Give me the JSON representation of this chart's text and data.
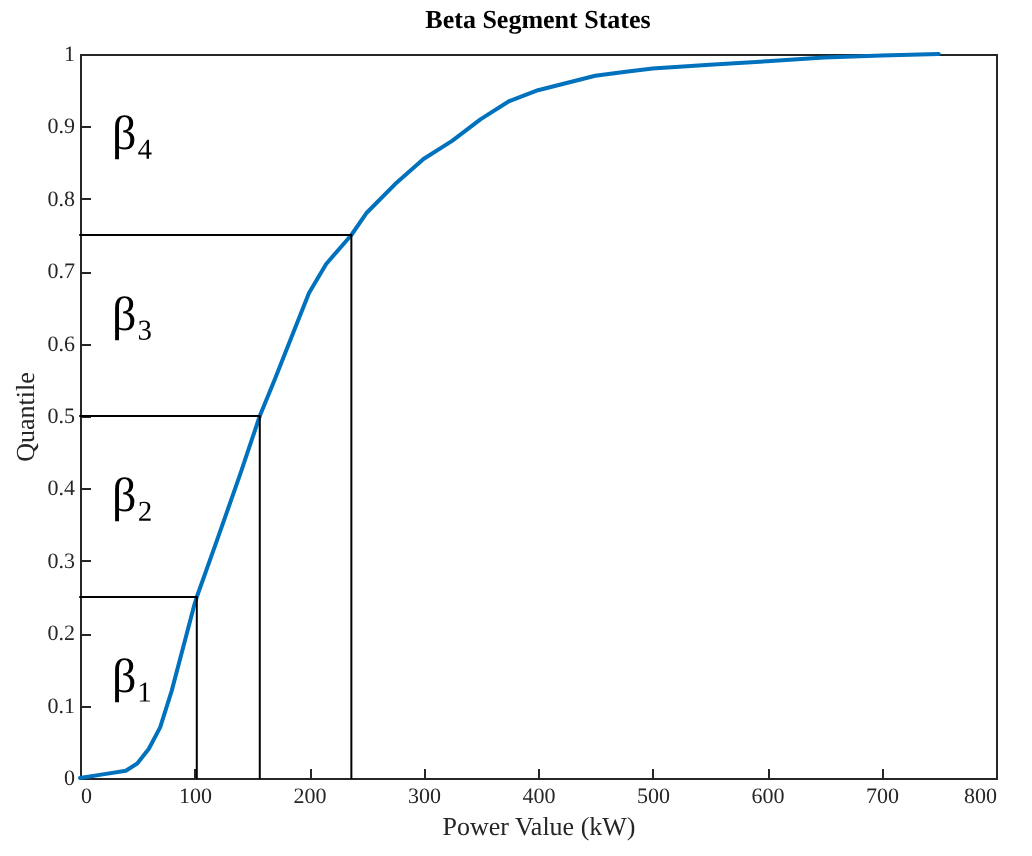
{
  "chart_data": {
    "type": "line",
    "title": "Beta Segment States",
    "xlabel": "Power Value (kW)",
    "ylabel": "Quantile",
    "xlim": [
      0,
      800
    ],
    "xticks": [
      0,
      100,
      200,
      300,
      400,
      500,
      600,
      700,
      800
    ],
    "ylim": [
      0,
      1
    ],
    "yticks": [
      0,
      0.1,
      0.2,
      0.3,
      0.4,
      0.5,
      0.6,
      0.7,
      0.8,
      0.9,
      1
    ],
    "grid": false,
    "marker": "none",
    "line_style": "solid",
    "series": [
      {
        "color": "#0072bd",
        "x": [
          0,
          20,
          40,
          50,
          60,
          70,
          80,
          90,
          100,
          102,
          120,
          140,
          157,
          170,
          185,
          200,
          215,
          237,
          250,
          275,
          300,
          325,
          350,
          375,
          400,
          425,
          450,
          475,
          500,
          550,
          600,
          650,
          700,
          750
        ],
        "values": [
          0,
          0.005,
          0.01,
          0.02,
          0.04,
          0.07,
          0.12,
          0.18,
          0.24,
          0.25,
          0.33,
          0.42,
          0.5,
          0.55,
          0.61,
          0.67,
          0.71,
          0.75,
          0.78,
          0.82,
          0.855,
          0.88,
          0.91,
          0.935,
          0.95,
          0.96,
          0.97,
          0.975,
          0.98,
          0.985,
          0.99,
          0.995,
          0.998,
          1
        ]
      },
      {
        "color": "#000000",
        "x": [
          0,
          102,
          102
        ],
        "values": [
          0.25,
          0.25,
          0
        ]
      },
      {
        "color": "#000000",
        "x": [
          0,
          157,
          157
        ],
        "values": [
          0.5,
          0.5,
          0
        ]
      },
      {
        "color": "#000000",
        "x": [
          0,
          237,
          237
        ],
        "values": [
          0.75,
          0.75,
          0
        ]
      }
    ],
    "annotations": [
      "β₁",
      "β₂",
      "β₃",
      "β₄"
    ]
  }
}
